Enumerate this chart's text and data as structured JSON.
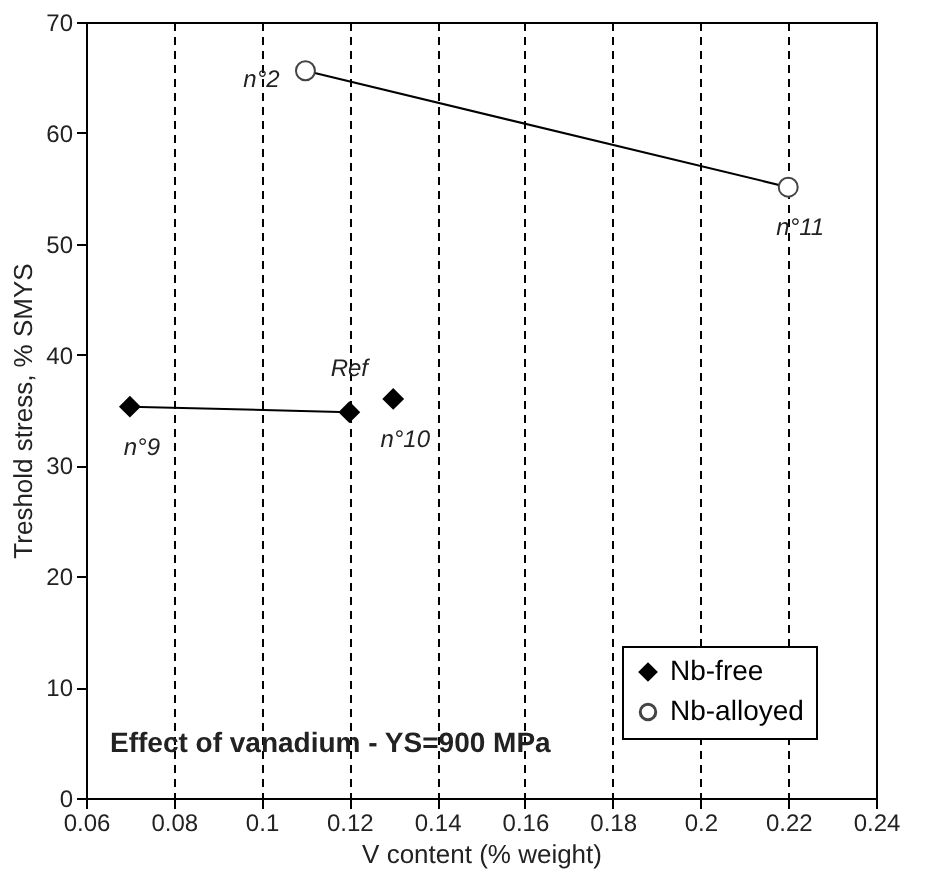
{
  "chart_data": {
    "type": "scatter",
    "xlabel": "V content (% weight)",
    "ylabel": "Treshold stress, % SMYS",
    "xlim": [
      0.06,
      0.24
    ],
    "xticks": [
      0.06,
      0.08,
      0.1,
      0.12,
      0.14,
      0.16,
      0.18,
      0.2,
      0.22,
      0.24
    ],
    "ylim": [
      0,
      70
    ],
    "yticks": [
      0,
      10,
      20,
      30,
      40,
      50,
      60,
      70
    ],
    "grid": "x",
    "legend": "bottom right",
    "series": [
      {
        "type": "line",
        "color": "#000000",
        "x": [
          0.07,
          0.12
        ],
        "values": [
          35.3,
          34.8
        ]
      },
      {
        "type": "line",
        "color": "#000000",
        "x": [
          0.11,
          0.22
        ],
        "values": [
          65.6,
          55.1
        ]
      },
      {
        "name": "Nb-free",
        "color": "#000000",
        "x": [
          0.07,
          0.12,
          0.13
        ],
        "values": [
          35.3,
          34.8,
          36.0
        ],
        "marker": "diamond"
      },
      {
        "name": "Nb-alloyed",
        "color": "#444444",
        "x": [
          0.11,
          0.22
        ],
        "values": [
          65.6,
          55.1
        ],
        "marker": "circle"
      }
    ],
    "annotations": [
      {
        "text": "n°9",
        "x": 0.07,
        "y": 35.3
      },
      {
        "text": "Ref",
        "x": 0.12,
        "y": 34.8
      },
      {
        "text": "n°10",
        "x": 0.13,
        "y": 36.0
      },
      {
        "text": "n°2",
        "x": 0.11,
        "y": 65.6
      },
      {
        "text": "n°11",
        "x": 0.22,
        "y": 55.1
      },
      "Effect of vanadium - YS=900 MPa"
    ]
  }
}
